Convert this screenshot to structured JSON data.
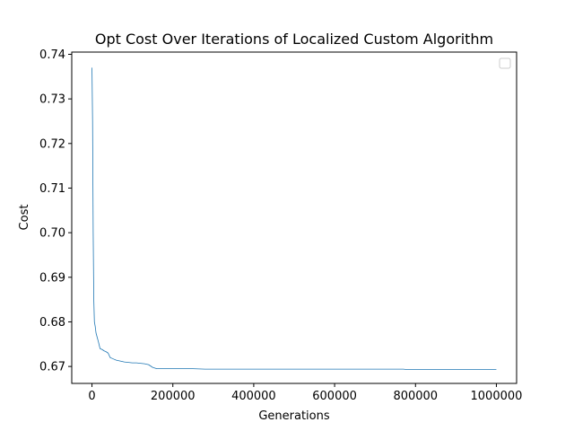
{
  "chart_data": {
    "type": "line",
    "title": "Opt Cost Over Iterations of Localized Custom Algorithm",
    "xlabel": "Generations",
    "ylabel": "Cost",
    "xlim": [
      -50000,
      1050000
    ],
    "ylim": [
      0.6662,
      0.7405
    ],
    "xticks": [
      0,
      200000,
      400000,
      600000,
      800000,
      1000000
    ],
    "xtick_labels": [
      "0",
      "200000",
      "400000",
      "600000",
      "800000",
      "1000000"
    ],
    "yticks": [
      0.67,
      0.68,
      0.69,
      0.7,
      0.71,
      0.72,
      0.73,
      0.74
    ],
    "ytick_labels": [
      "0.67",
      "0.68",
      "0.69",
      "0.70",
      "0.71",
      "0.72",
      "0.73",
      "0.74"
    ],
    "grid": false,
    "legend": {
      "placement": "top-right",
      "entries": []
    },
    "series": [
      {
        "color": "#1f77b4",
        "x": [
          0,
          1500,
          3000,
          4500,
          6000,
          8000,
          10000,
          13000,
          16000,
          20000,
          25000,
          30000,
          35000,
          40000,
          45000,
          50000,
          55000,
          60000,
          70000,
          80000,
          90000,
          100000,
          110000,
          120000,
          130000,
          140000,
          150000,
          160000,
          170000,
          200000,
          250000,
          280000,
          290000,
          400000,
          500000,
          600000,
          700000,
          770000,
          780000,
          900000,
          1000000
        ],
        "y": [
          0.737,
          0.725,
          0.7,
          0.685,
          0.68,
          0.679,
          0.6775,
          0.6765,
          0.6755,
          0.674,
          0.6738,
          0.6735,
          0.6733,
          0.673,
          0.672,
          0.6718,
          0.6716,
          0.6714,
          0.6712,
          0.671,
          0.6709,
          0.6708,
          0.6708,
          0.6707,
          0.6706,
          0.6704,
          0.6698,
          0.6695,
          0.6695,
          0.6695,
          0.6695,
          0.6694,
          0.6694,
          0.6694,
          0.6694,
          0.6694,
          0.6694,
          0.6694,
          0.6693,
          0.6693,
          0.6693
        ]
      }
    ]
  }
}
